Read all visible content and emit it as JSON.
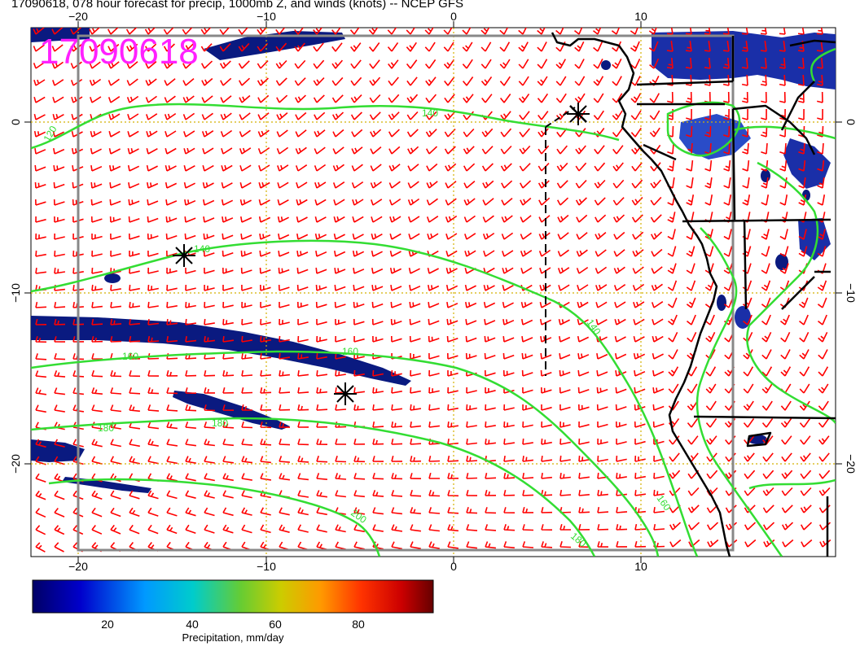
{
  "title": "17090618, 078 hour forecast for precip, 1000mb Z, and winds (knots) -- NCEP GFS",
  "stamp": "17090618",
  "axes": {
    "lon_ticks": [
      {
        "value": -20,
        "label": "−20"
      },
      {
        "value": -10,
        "label": "−10"
      },
      {
        "value": 0,
        "label": "0"
      },
      {
        "value": 10,
        "label": "10"
      }
    ],
    "lat_ticks": [
      {
        "value": 0,
        "label": "0"
      },
      {
        "value": -10,
        "label": "−10"
      },
      {
        "value": -20,
        "label": "−20"
      }
    ]
  },
  "contours": [
    {
      "label": "120",
      "level": 120
    },
    {
      "label": "140",
      "level": 140
    },
    {
      "label": "160",
      "level": 160
    },
    {
      "label": "180",
      "level": 180
    },
    {
      "label": "200",
      "level": 200
    }
  ],
  "colorbar": {
    "title": "Precipitation, mm/day",
    "ticks": [
      "20",
      "40",
      "60",
      "80"
    ],
    "colors": [
      "#000066",
      "#0000cc",
      "#0099ff",
      "#00cccc",
      "#66cc33",
      "#cccc00",
      "#ff9900",
      "#ff3300",
      "#cc0000",
      "#660000"
    ]
  },
  "colors": {
    "wind_barb": "#ff0000",
    "contour": "#33dd33",
    "precip": "#0a1a80",
    "grid": "#d4b000",
    "coast": "#000000",
    "stamp": "#ff20ff"
  }
}
